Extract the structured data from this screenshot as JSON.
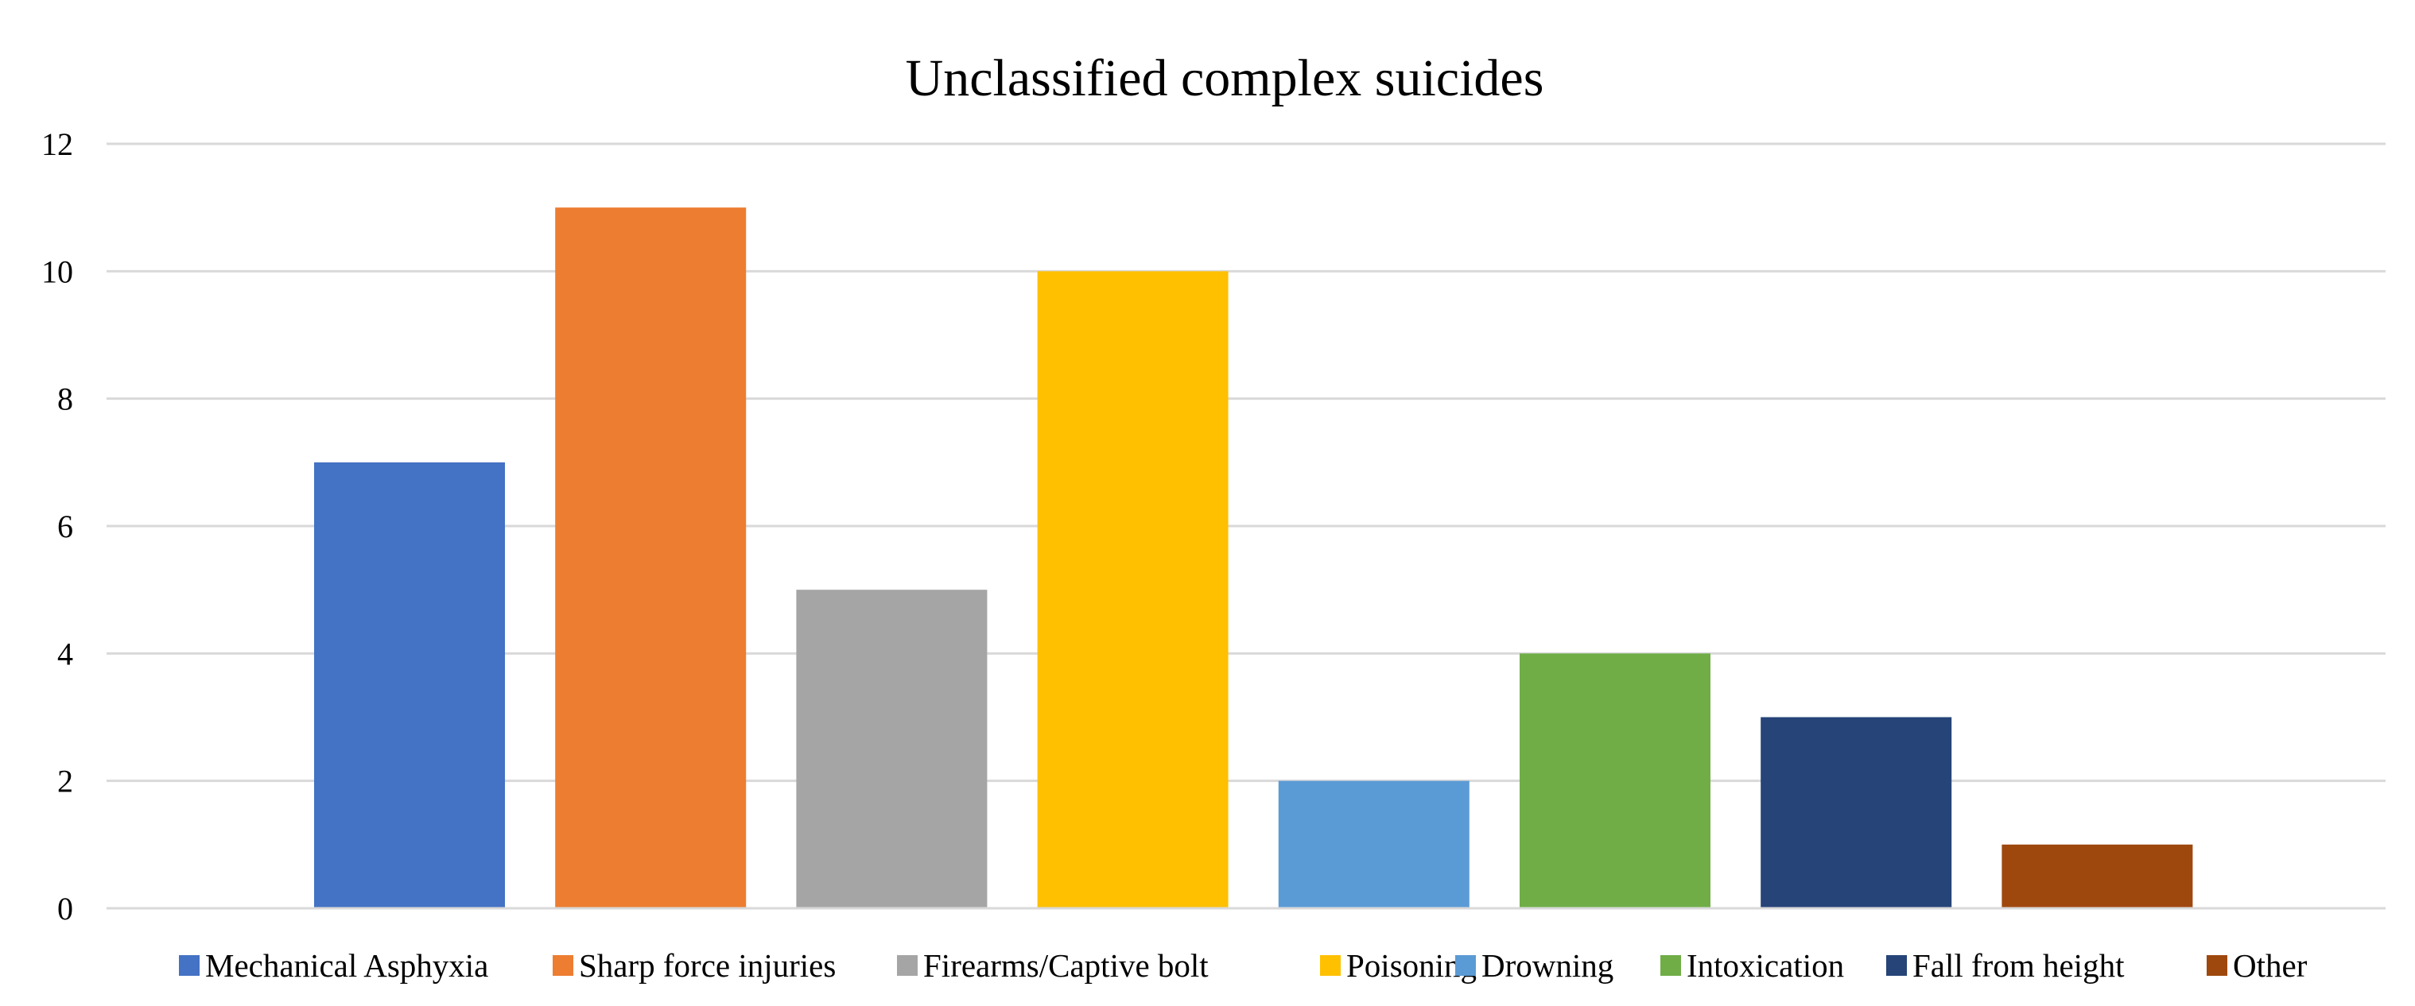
{
  "chart_data": {
    "type": "bar",
    "title": "Unclassified complex suicides",
    "xlabel": "",
    "ylabel": "",
    "ylim": [
      0,
      12
    ],
    "yticks": [
      0,
      2,
      4,
      6,
      8,
      10,
      12
    ],
    "grid": true,
    "legend_position": "bottom",
    "categories": [
      "Mechanical Asphyxia",
      "Sharp force injuries",
      "Firearms/Captive bolt",
      "Poisoning",
      "Drowning",
      "Intoxication",
      "Fall from height",
      "Other"
    ],
    "values": [
      7,
      11,
      5,
      10,
      2,
      4,
      3,
      1
    ],
    "colors": [
      "#4472C4",
      "#ED7D31",
      "#A5A5A5",
      "#FFC000",
      "#5B9BD5",
      "#70AD47",
      "#264478",
      "#9E480E"
    ]
  }
}
